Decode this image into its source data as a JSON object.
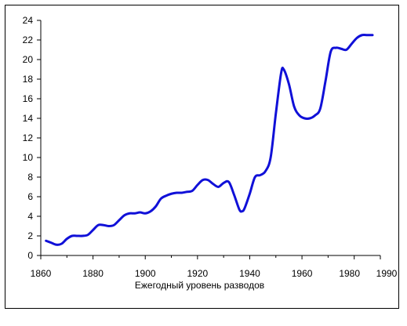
{
  "chart_data": {
    "type": "line",
    "title": "",
    "xlabel": "Ежегодный уровень разводов",
    "ylabel": "",
    "xlim": [
      1860,
      1990
    ],
    "ylim": [
      0,
      24
    ],
    "xticks": [
      1860,
      1880,
      1900,
      1920,
      1940,
      1960,
      1980,
      1990
    ],
    "yticks": [
      0,
      2,
      4,
      6,
      8,
      10,
      12,
      14,
      16,
      18,
      20,
      22,
      24
    ],
    "grid": false,
    "legend": "none",
    "line_color": "#1010d8",
    "series": [
      {
        "x": [
          1862,
          1864,
          1866,
          1868,
          1870,
          1872,
          1874,
          1876,
          1878,
          1880,
          1882,
          1884,
          1886,
          1888,
          1890,
          1892,
          1894,
          1896,
          1898,
          1900,
          1902,
          1904,
          1906,
          1908,
          1910,
          1912,
          1914,
          1916,
          1918,
          1920,
          1922,
          1924,
          1926,
          1928,
          1930,
          1932,
          1934,
          1936,
          1937,
          1938,
          1940,
          1942,
          1944,
          1946,
          1948,
          1950,
          1952,
          1953,
          1955,
          1957,
          1959,
          1961,
          1963,
          1965,
          1967,
          1969,
          1971,
          1973,
          1975,
          1977,
          1979,
          1981,
          1983,
          1985,
          1987
        ],
        "values": [
          1.5,
          1.3,
          1.1,
          1.2,
          1.7,
          2.0,
          2.0,
          2.0,
          2.1,
          2.6,
          3.1,
          3.1,
          3.0,
          3.1,
          3.6,
          4.1,
          4.3,
          4.3,
          4.4,
          4.3,
          4.5,
          5.0,
          5.8,
          6.1,
          6.3,
          6.4,
          6.4,
          6.5,
          6.6,
          7.2,
          7.7,
          7.7,
          7.3,
          7.0,
          7.4,
          7.5,
          6.2,
          4.7,
          4.5,
          4.8,
          6.3,
          8.0,
          8.2,
          8.6,
          10.0,
          14.5,
          18.6,
          19.0,
          17.5,
          15.2,
          14.3,
          14.0,
          14.0,
          14.3,
          15.0,
          17.8,
          20.8,
          21.2,
          21.1,
          21.0,
          21.6,
          22.2,
          22.5,
          22.5,
          22.5
        ]
      }
    ]
  }
}
